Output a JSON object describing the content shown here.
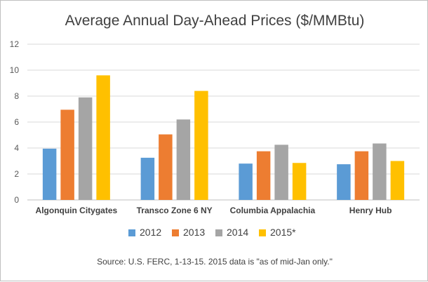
{
  "chart_data": {
    "type": "bar",
    "title": "Average Annual Day-Ahead Prices ($/MMBtu)",
    "xlabel": "",
    "ylabel": "",
    "ylim": [
      0,
      12
    ],
    "yticks": [
      "0",
      "2",
      "4",
      "6",
      "8",
      "10",
      "12"
    ],
    "grid": true,
    "legend_position": "bottom",
    "categories": [
      "Algonquin Citygates",
      "Transco Zone 6 NY",
      "Columbia Appalachia",
      "Henry Hub"
    ],
    "series": [
      {
        "name": "2012",
        "color": "#5b9bd5",
        "values": [
          3.95,
          3.25,
          2.8,
          2.75
        ]
      },
      {
        "name": "2013",
        "color": "#ed7d31",
        "values": [
          6.95,
          5.05,
          3.75,
          3.75
        ]
      },
      {
        "name": "2014",
        "color": "#a5a5a5",
        "values": [
          7.9,
          6.2,
          4.25,
          4.35
        ]
      },
      {
        "name": "2015*",
        "color": "#ffc000",
        "values": [
          9.6,
          8.4,
          2.85,
          3.0
        ]
      }
    ],
    "source_note": "Source: U.S. FERC, 1-13-15.  2015 data is \"as of mid-Jan only.\""
  }
}
